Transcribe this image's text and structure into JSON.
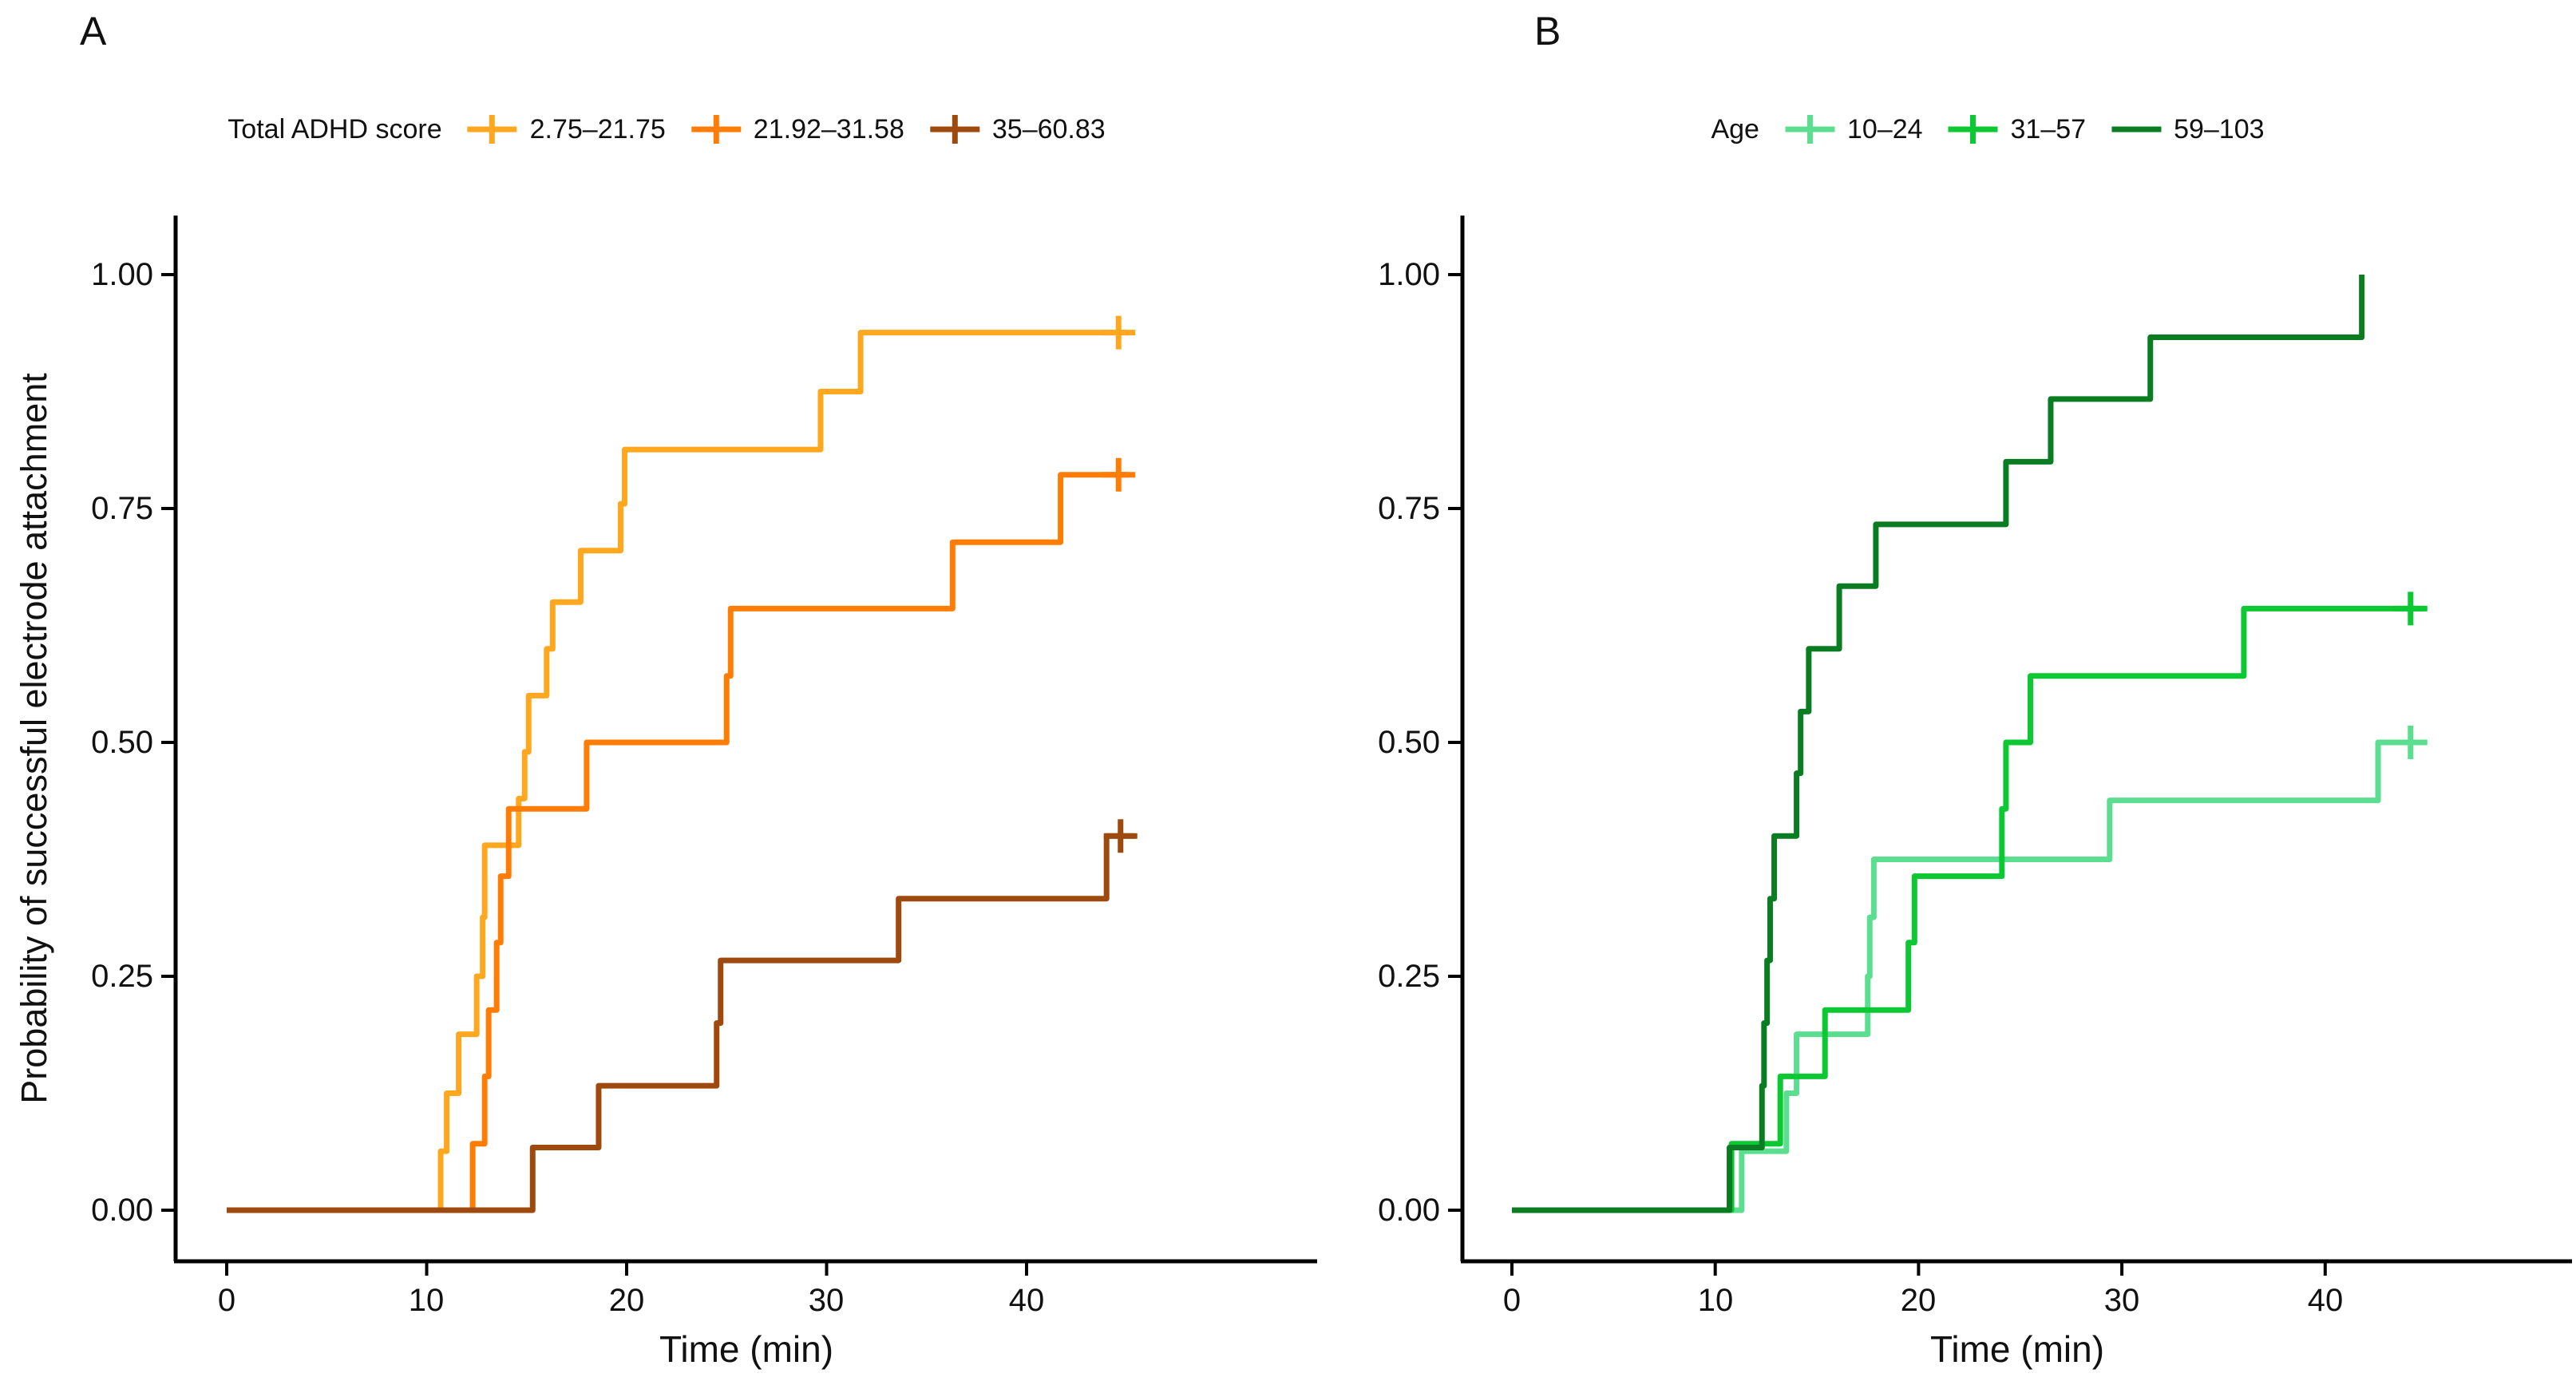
{
  "figure": {
    "background": "#FFFFFF",
    "axis_color": "#000000",
    "text_color": "#111111"
  },
  "chart_data": [
    {
      "type": "line",
      "subtype": "step-survival-curve",
      "panel_label": "A",
      "legend_title": "Total ADHD score",
      "legend_position": "top",
      "xlabel": "Time (min)",
      "ylabel": "Probability of successful electrode attachment",
      "xlim": [
        0,
        54
      ],
      "ylim": [
        0,
        1
      ],
      "grid": false,
      "xticks": [
        "0",
        "10",
        "20",
        "30",
        "40"
      ],
      "yticks": [
        "0.00",
        "0.25",
        "0.50",
        "0.75",
        "1.00"
      ],
      "series": [
        {
          "name": "2.75–21.75",
          "color": "#FFA71E",
          "censor_glyph": "plus",
          "censor_times": [
            44.6
          ],
          "line_end": 45.1,
          "steps": [
            [
              10.7,
              0.063
            ],
            [
              11.0,
              0.125
            ],
            [
              11.6,
              0.188
            ],
            [
              12.5,
              0.25
            ],
            [
              12.8,
              0.313
            ],
            [
              12.9,
              0.39
            ],
            [
              14.6,
              0.44
            ],
            [
              14.9,
              0.49
            ],
            [
              15.1,
              0.55
            ],
            [
              16.0,
              0.6
            ],
            [
              16.3,
              0.65
            ],
            [
              17.7,
              0.705
            ],
            [
              19.7,
              0.755
            ],
            [
              19.9,
              0.813
            ],
            [
              29.7,
              0.875
            ],
            [
              31.7,
              0.938
            ]
          ]
        },
        {
          "name": "21.92–31.58",
          "color": "#FF7D05",
          "censor_glyph": "plus",
          "censor_times": [
            44.6
          ],
          "line_end": 45.1,
          "steps": [
            [
              12.3,
              0.071
            ],
            [
              12.9,
              0.143
            ],
            [
              13.1,
              0.214
            ],
            [
              13.5,
              0.286
            ],
            [
              13.7,
              0.357
            ],
            [
              14.1,
              0.429
            ],
            [
              18.0,
              0.5
            ],
            [
              25.0,
              0.571
            ],
            [
              25.2,
              0.643
            ],
            [
              36.3,
              0.714
            ],
            [
              41.7,
              0.786
            ]
          ]
        },
        {
          "name": "35–60.83",
          "color": "#9E4A0F",
          "censor_glyph": "plus",
          "censor_times": [
            44.7
          ],
          "line_end": 45.4,
          "steps": [
            [
              15.3,
              0.067
            ],
            [
              18.6,
              0.133
            ],
            [
              24.5,
              0.2
            ],
            [
              24.7,
              0.267
            ],
            [
              33.6,
              0.333
            ],
            [
              44.0,
              0.4
            ]
          ]
        }
      ]
    },
    {
      "type": "line",
      "subtype": "step-survival-curve",
      "panel_label": "B",
      "legend_title": "Age",
      "legend_position": "top",
      "xlabel": "Time (min)",
      "ylabel": "",
      "xlim": [
        0,
        52
      ],
      "ylim": [
        0,
        1
      ],
      "grid": false,
      "xticks": [
        "0",
        "10",
        "20",
        "30",
        "40"
      ],
      "yticks": [
        "0.00",
        "0.25",
        "0.50",
        "0.75",
        "1.00"
      ],
      "series": [
        {
          "name": "10–24",
          "color": "#5CDE91",
          "censor_glyph": "plus",
          "censor_times": [
            44.2
          ],
          "line_end": 44.9,
          "steps": [
            [
              11.3,
              0.063
            ],
            [
              13.5,
              0.125
            ],
            [
              14.0,
              0.188
            ],
            [
              17.5,
              0.25
            ],
            [
              17.6,
              0.313
            ],
            [
              17.8,
              0.375
            ],
            [
              29.4,
              0.438
            ],
            [
              42.6,
              0.5
            ]
          ]
        },
        {
          "name": "31–57",
          "color": "#0CC832",
          "censor_glyph": "plus",
          "censor_times": [
            44.2
          ],
          "line_end": 44.9,
          "steps": [
            [
              10.8,
              0.071
            ],
            [
              13.2,
              0.143
            ],
            [
              15.4,
              0.214
            ],
            [
              19.5,
              0.286
            ],
            [
              19.8,
              0.357
            ],
            [
              24.1,
              0.429
            ],
            [
              24.3,
              0.5
            ],
            [
              25.5,
              0.571
            ],
            [
              36.0,
              0.643
            ]
          ]
        },
        {
          "name": "59–103",
          "color": "#0A7D22",
          "censor_glyph": "none",
          "censor_times": [],
          "line_end": 41.8,
          "steps": [
            [
              10.7,
              0.067
            ],
            [
              12.3,
              0.133
            ],
            [
              12.4,
              0.2
            ],
            [
              12.55,
              0.267
            ],
            [
              12.7,
              0.333
            ],
            [
              12.9,
              0.4
            ],
            [
              14.0,
              0.467
            ],
            [
              14.2,
              0.533
            ],
            [
              14.6,
              0.6
            ],
            [
              16.1,
              0.667
            ],
            [
              17.9,
              0.733
            ],
            [
              24.3,
              0.8
            ],
            [
              26.5,
              0.867
            ],
            [
              31.4,
              0.933
            ],
            [
              41.8,
              1.0
            ]
          ]
        }
      ]
    }
  ]
}
